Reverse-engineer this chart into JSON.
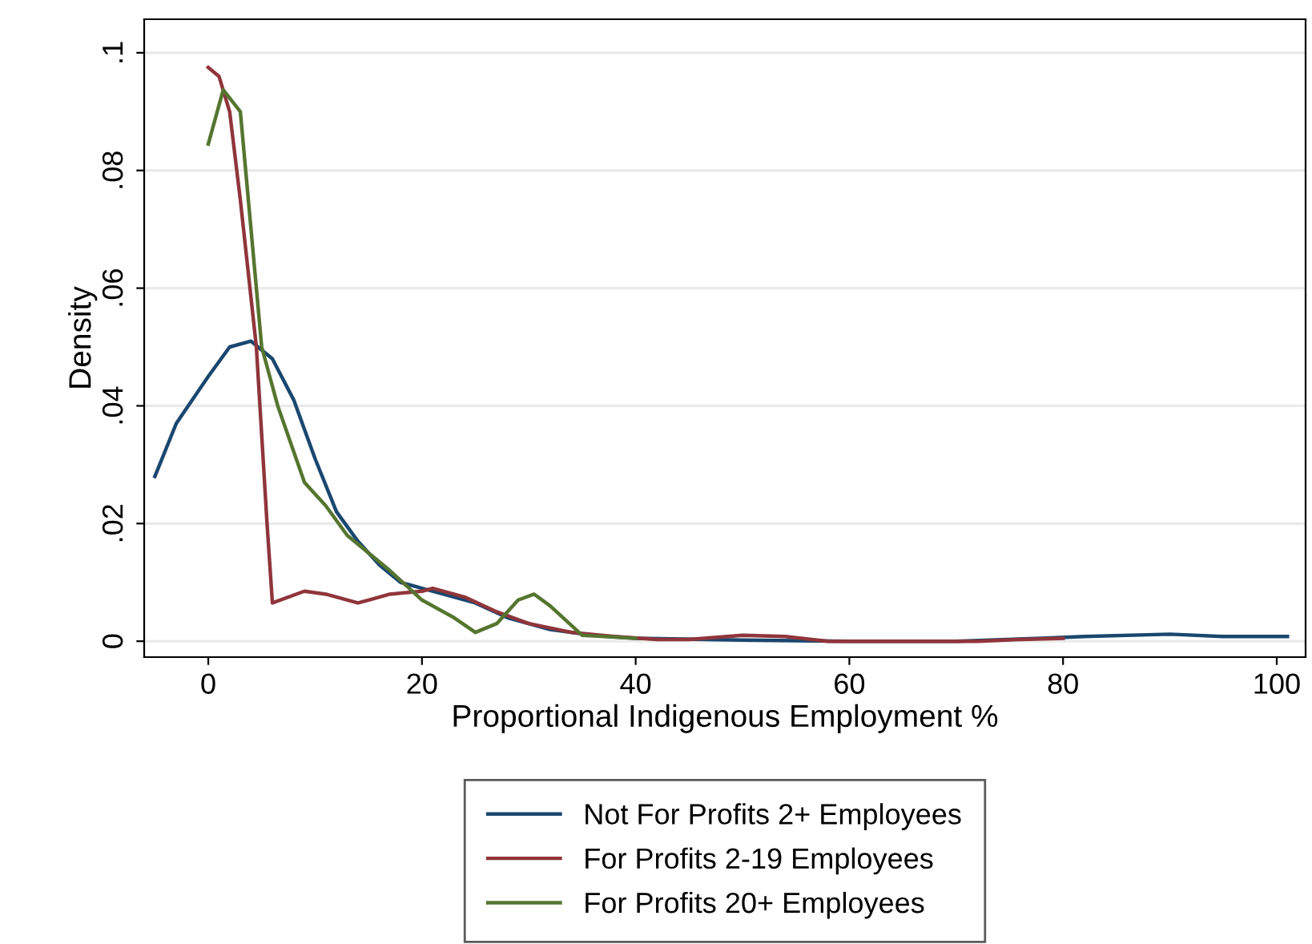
{
  "chart_data": {
    "type": "line",
    "xlabel": "Proportional Indigenous Employment %",
    "ylabel": "Density",
    "xlim": [
      -6,
      102.7
    ],
    "ylim": [
      -0.0027,
      0.1057
    ],
    "xticks": [
      0,
      20,
      40,
      60,
      80,
      100
    ],
    "yticks": [
      0,
      {
        "value": 0.02,
        "label": ".02"
      },
      {
        "value": 0.04,
        "label": ".04"
      },
      {
        "value": 0.06,
        "label": ".06"
      },
      {
        "value": 0.08,
        "label": ".08"
      },
      {
        "value": 0.1,
        "label": ".1"
      }
    ],
    "grid": "y",
    "legend": "bottom",
    "marker": "none",
    "line_style": "solid",
    "series": [
      {
        "name": "Not For Profits 2+ Employees",
        "color": "#1a476f",
        "x": [
          -5,
          -3,
          0,
          2,
          4,
          6,
          8,
          10,
          12,
          14,
          16,
          18,
          20,
          22,
          25,
          28,
          32,
          36,
          40,
          50,
          60,
          70,
          78,
          82,
          90,
          95,
          101
        ],
        "values": [
          0.028,
          0.037,
          0.045,
          0.05,
          0.051,
          0.048,
          0.041,
          0.031,
          0.022,
          0.017,
          0.013,
          0.01,
          0.009,
          0.008,
          0.0065,
          0.004,
          0.002,
          0.001,
          0.0005,
          0.0002,
          0,
          0,
          0.0005,
          0.0008,
          0.0012,
          0.0008,
          0.0008
        ]
      },
      {
        "name": "For Profits 2-19 Employees",
        "color": "#90353b",
        "x": [
          0,
          1,
          2,
          3,
          4.5,
          5.5,
          6,
          9,
          11,
          14,
          15,
          17,
          20,
          21,
          24,
          27,
          30,
          34,
          38,
          42,
          45,
          50,
          54,
          58,
          72,
          76,
          80
        ],
        "values": [
          0.0975,
          0.096,
          0.09,
          0.075,
          0.05,
          0.02,
          0.0065,
          0.0085,
          0.008,
          0.0065,
          0.007,
          0.008,
          0.0085,
          0.009,
          0.0075,
          0.005,
          0.003,
          0.0015,
          0.0008,
          0.0003,
          0.0003,
          0.001,
          0.0008,
          0,
          0,
          0.0003,
          0.0005
        ]
      },
      {
        "name": "For Profits 20+ Employees",
        "color": "#55752f",
        "x": [
          0,
          1.4,
          3,
          4,
          5,
          6.5,
          9,
          11,
          13,
          15,
          17,
          20,
          23,
          25,
          27,
          29,
          30.5,
          32,
          35,
          40
        ],
        "values": [
          0.0845,
          0.0937,
          0.09,
          0.07,
          0.05,
          0.04,
          0.027,
          0.023,
          0.018,
          0.015,
          0.012,
          0.007,
          0.004,
          0.0015,
          0.003,
          0.007,
          0.008,
          0.006,
          0.001,
          0.0005
        ]
      }
    ]
  }
}
